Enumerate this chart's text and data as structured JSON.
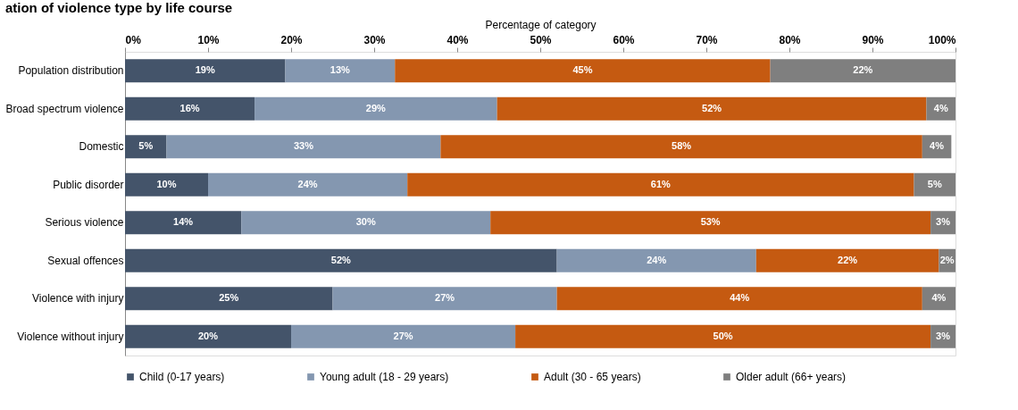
{
  "chart_data": {
    "type": "bar",
    "orientation": "horizontal",
    "stacked": true,
    "title": "ation of violence type by life course",
    "xlabel": "Percentage of category",
    "categories": [
      "Population distribution",
      "Broad spectrum violence",
      "Domestic",
      "Public disorder",
      "Serious violence",
      "Sexual offences",
      "Violence with injury",
      "Violence without injury"
    ],
    "series": [
      {
        "name": "Child (0-17 years)",
        "color": "#44546a",
        "values": [
          19.3,
          15.6,
          5,
          10,
          14,
          52,
          25,
          20
        ],
        "value_labels": [
          "19%",
          "16%",
          "5%",
          "10%",
          "14%",
          "52%",
          "25%",
          "20%"
        ]
      },
      {
        "name": "Young adult (18 - 29 years)",
        "color": "#8497b0",
        "values": [
          13.2,
          29.2,
          33,
          24,
          30,
          24,
          27,
          27
        ],
        "value_labels": [
          "13%",
          "29%",
          "33%",
          "24%",
          "30%",
          "24%",
          "27%",
          "27%"
        ]
      },
      {
        "name": "Adult (30 - 65 years)",
        "color": "#c55a11",
        "values": [
          45.2,
          51.7,
          58,
          61,
          53,
          22,
          44,
          50
        ],
        "value_labels": [
          "45%",
          "52%",
          "58%",
          "61%",
          "53%",
          "22%",
          "44%",
          "50%"
        ]
      },
      {
        "name": "Older adult (66+ years)",
        "color": "#7f7f7f",
        "values": [
          22.3,
          3.5,
          3.5,
          5,
          3,
          2,
          4,
          3
        ],
        "value_labels": [
          "22%",
          "4%",
          "4%",
          "5%",
          "3%",
          "2%",
          "4%",
          "3%"
        ]
      }
    ],
    "xlim": [
      0,
      100
    ],
    "xticks": [
      {
        "value": 0,
        "label": "0%"
      },
      {
        "value": 10,
        "label": "10%"
      },
      {
        "value": 20,
        "label": "20%"
      },
      {
        "value": 30,
        "label": "30%"
      },
      {
        "value": 40,
        "label": "40%"
      },
      {
        "value": 50,
        "label": "50%"
      },
      {
        "value": 60,
        "label": "60%"
      },
      {
        "value": 70,
        "label": "70%"
      },
      {
        "value": 80,
        "label": "80%"
      },
      {
        "value": 90,
        "label": "90%"
      },
      {
        "value": 100,
        "label": "100%"
      }
    ],
    "grid": false,
    "legend": "bottom"
  }
}
